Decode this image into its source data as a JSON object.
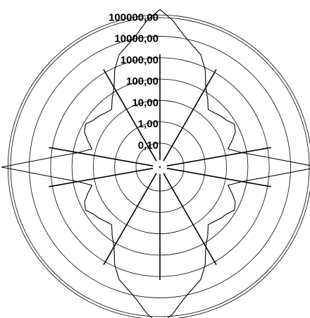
{
  "chart_data": {
    "type": "line",
    "projection": "polar",
    "radial_axis": {
      "scale": "log",
      "range": [
        0.1,
        1000000
      ],
      "tick_values": [
        0.1,
        1,
        10,
        100,
        1000,
        10000,
        100000
      ],
      "tick_labels": [
        "0,10",
        "1,00",
        "10,00",
        "100,00",
        "1000,00",
        "10000,00",
        "100000,00"
      ]
    },
    "grid": true,
    "legend": "none",
    "colors": {
      "trace": "#000000",
      "grid": "#000000",
      "background": "#ffffff"
    },
    "angle_deg_clockwise_from_top": [
      0,
      5,
      10,
      15,
      20,
      25,
      30,
      35,
      40,
      45,
      50,
      55,
      60,
      65,
      70,
      75,
      80,
      85,
      90,
      95,
      100,
      105,
      110,
      115,
      120,
      125,
      130,
      135,
      140,
      145,
      150,
      155,
      160,
      165,
      170,
      175,
      180,
      185,
      190,
      195,
      200,
      205,
      210,
      215,
      220,
      225,
      230,
      235,
      240,
      245,
      250,
      255,
      260,
      265,
      270,
      275,
      280,
      285,
      290,
      295,
      300,
      305,
      310,
      315,
      320,
      325,
      330,
      335,
      340,
      345,
      350,
      355
    ],
    "series": [
      {
        "values": [
          180000,
          60000,
          15000,
          6000,
          3000,
          800,
          150,
          60,
          25,
          30,
          40,
          50,
          80,
          60,
          30,
          15,
          60,
          1000,
          200000,
          1000,
          60,
          15,
          30,
          60,
          80,
          50,
          40,
          30,
          25,
          60,
          150,
          800,
          3000,
          6000,
          15000,
          60000,
          180000,
          60000,
          15000,
          6000,
          3000,
          800,
          150,
          60,
          25,
          30,
          40,
          50,
          80,
          60,
          30,
          15,
          60,
          1000,
          200000,
          1000,
          60,
          15,
          30,
          60,
          80,
          50,
          40,
          30,
          25,
          60,
          150,
          800,
          3000,
          6000,
          15000,
          60000
        ]
      }
    ]
  }
}
